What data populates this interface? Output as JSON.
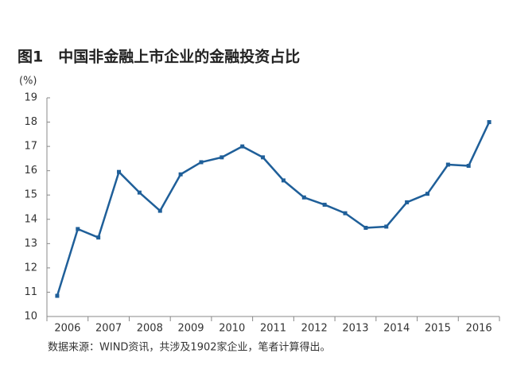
{
  "chart_data": {
    "type": "line",
    "title": "图1　中国非金融上市企业的金融投资占比",
    "y_label": "(%)",
    "note": "数据来源：WIND资讯，共涉及1902家企业，笔者计算得出。",
    "categories": [
      "2006",
      null,
      "2007",
      null,
      "2008",
      null,
      "2009",
      null,
      "2010",
      null,
      "2011",
      null,
      "2012",
      null,
      "2013",
      null,
      "2014",
      null,
      "2015",
      null,
      "2016",
      null
    ],
    "series": [
      {
        "color": "#1f5f99",
        "values": [
          10.85,
          13.6,
          13.25,
          15.95,
          15.1,
          14.35,
          15.85,
          16.35,
          16.55,
          17.0,
          16.55,
          15.6,
          14.9,
          14.6,
          14.25,
          13.65,
          13.7,
          14.7,
          15.05,
          16.25,
          16.2,
          18.0
        ]
      }
    ],
    "ylim": [
      10,
      19
    ],
    "yticks": [
      10,
      11,
      12,
      13,
      14,
      15,
      16,
      17,
      18,
      19
    ]
  }
}
